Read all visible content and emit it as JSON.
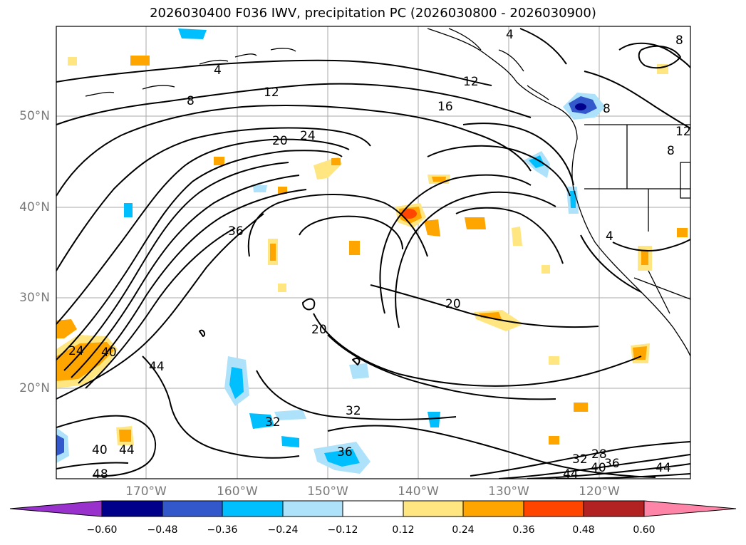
{
  "title": "2026030400 F036 IWV, precipitation PC (2026030800 - 2026030900)",
  "lat_labels": [
    "50°N",
    "40°N",
    "30°N",
    "20°N"
  ],
  "lon_labels": [
    "170°W",
    "160°W",
    "150°W",
    "140°W",
    "130°W",
    "120°W"
  ],
  "contour_labels": [
    "4",
    "8",
    "12",
    "16",
    "20",
    "24",
    "36",
    "20",
    "20",
    "24",
    "40",
    "44",
    "32",
    "32",
    "36",
    "40",
    "44",
    "48",
    "28",
    "32",
    "36",
    "40",
    "44",
    "44",
    "8",
    "12",
    "8",
    "4",
    "4",
    "8",
    "12"
  ],
  "colorbar": {
    "ticks": [
      "−0.60",
      "−0.48",
      "−0.36",
      "−0.24",
      "−0.12",
      "0.12",
      "0.24",
      "0.36",
      "0.48",
      "0.60"
    ],
    "colors": [
      "#9932cc",
      "#00008b",
      "#3358cc",
      "#00bfff",
      "#aee2fa",
      "#ffffff",
      "#ffe680",
      "#ffa500",
      "#ff4500",
      "#b22222",
      "#ff85a8"
    ]
  },
  "colors": {
    "positive": [
      "#ffe680",
      "#ffa500",
      "#ff4500"
    ],
    "negative": [
      "#aee2fa",
      "#00bfff",
      "#3358cc",
      "#00008b"
    ],
    "grid": "#aaaaaa",
    "axis_label": "#7a7a7a"
  }
}
